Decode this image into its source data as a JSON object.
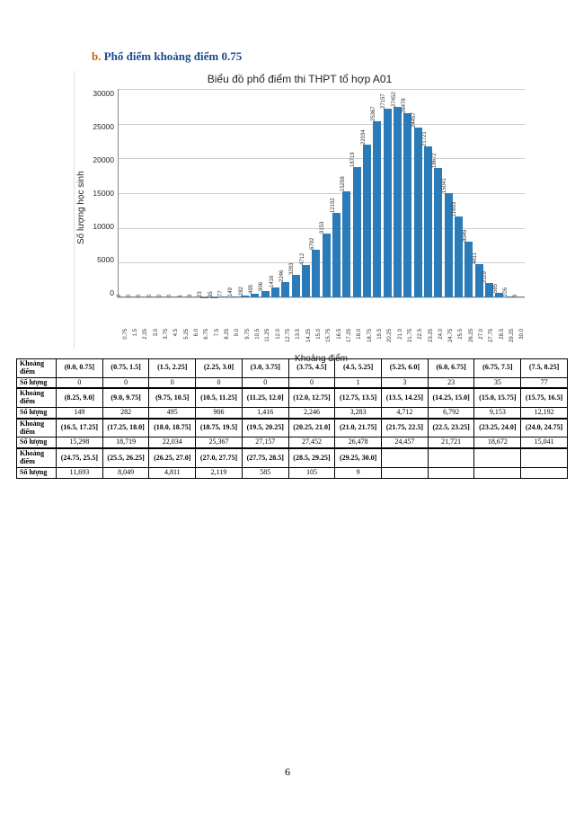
{
  "section": {
    "bullet": "b.",
    "text": "Phổ điểm khoảng điểm 0.75"
  },
  "chart": {
    "type": "bar",
    "title": "Biểu đồ phổ điểm thi THPT tổ hợp A01",
    "y_label": "Số lượng học sinh",
    "x_label": "Khoảng điểm",
    "y_ticks": [
      "30000",
      "25000",
      "20000",
      "15000",
      "10000",
      "5000",
      "0"
    ],
    "y_max": 30000,
    "bar_color": "#2b7bb9",
    "grid_color": "#ccc",
    "background": "#ffffff",
    "categories": [
      "0.75",
      "1.5",
      "2.25",
      "3.0",
      "3.75",
      "4.5",
      "5.25",
      "6.0",
      "6.75",
      "7.5",
      "8.25",
      "9.0",
      "9.75",
      "10.5",
      "11.25",
      "12.0",
      "12.75",
      "13.5",
      "14.25",
      "15.0",
      "15.75",
      "16.5",
      "17.25",
      "18.0",
      "18.75",
      "19.5",
      "20.25",
      "21.0",
      "21.75",
      "22.5",
      "23.25",
      "24.0",
      "24.75",
      "25.5",
      "26.25",
      "27.0",
      "27.75",
      "28.5",
      "29.25",
      "30.0"
    ],
    "values": [
      0,
      0,
      0,
      0,
      0,
      0,
      1,
      3,
      23,
      35,
      77,
      149,
      282,
      495,
      906,
      1416,
      2246,
      3283,
      4712,
      6792,
      9153,
      12192,
      15298,
      18719,
      22034,
      25367,
      27157,
      27452,
      26478,
      24457,
      21721,
      18672,
      15041,
      11693,
      8049,
      4811,
      2119,
      585,
      105,
      9
    ]
  },
  "tables": {
    "row_labels": {
      "range": "Khoảng điểm",
      "count": "Số lượng"
    },
    "groups": [
      {
        "ranges": [
          "(0.0, 0.75]",
          "(0.75, 1.5]",
          "(1.5, 2.25]",
          "(2.25, 3.0]",
          "(3.0, 3.75]",
          "(3.75, 4.5]",
          "(4.5, 5.25]",
          "(5.25, 6.0]",
          "(6.0, 6.75]",
          "(6.75, 7.5]",
          "(7.5, 8.25]"
        ],
        "counts": [
          "0",
          "0",
          "0",
          "0",
          "0",
          "0",
          "1",
          "3",
          "23",
          "35",
          "77"
        ]
      },
      {
        "ranges": [
          "(8.25, 9.0]",
          "(9.0, 9.75]",
          "(9.75, 10.5]",
          "(10.5, 11.25]",
          "(11.25, 12.0]",
          "(12.0, 12.75]",
          "(12.75, 13.5]",
          "(13.5, 14.25]",
          "(14.25, 15.0]",
          "(15.0, 15.75]",
          "(15.75, 16.5]"
        ],
        "counts": [
          "149",
          "282",
          "495",
          "906",
          "1,416",
          "2,246",
          "3,283",
          "4,712",
          "6,792",
          "9,153",
          "12,192"
        ]
      },
      {
        "ranges": [
          "(16.5, 17.25]",
          "(17.25, 18.0]",
          "(18.0, 18.75]",
          "(18.75, 19.5]",
          "(19.5, 20.25]",
          "(20.25, 21.0]",
          "(21.0, 21.75]",
          "(21.75, 22.5]",
          "(22.5, 23.25]",
          "(23.25, 24.0]",
          "(24.0, 24.75]"
        ],
        "counts": [
          "15,298",
          "18,719",
          "22,034",
          "25,367",
          "27,157",
          "27,452",
          "26,478",
          "24,457",
          "21,721",
          "18,672",
          "15,041"
        ]
      },
      {
        "ranges": [
          "(24.75, 25.5]",
          "(25.5, 26.25]",
          "(26.25, 27.0]",
          "(27.0, 27.75]",
          "(27.75, 28.5]",
          "(28.5, 29.25]",
          "(29.25, 30.0]",
          "",
          "",
          "",
          ""
        ],
        "counts": [
          "11,693",
          "8,049",
          "4,811",
          "2,119",
          "585",
          "105",
          "9",
          "",
          "",
          "",
          ""
        ]
      }
    ]
  },
  "page_number": "6"
}
